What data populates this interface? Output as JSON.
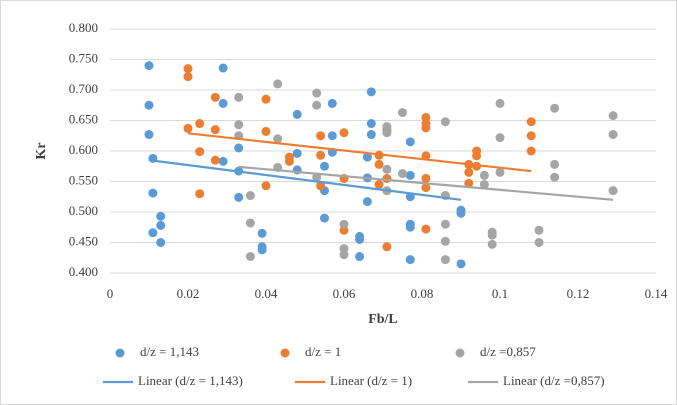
{
  "chart_data": {
    "type": "scatter",
    "xlabel": "Fb/L",
    "ylabel": "Kr",
    "xlim": [
      0,
      0.14
    ],
    "xticks": [
      0,
      0.02,
      0.04,
      0.06,
      0.08,
      0.1,
      0.12,
      0.14
    ],
    "ylim": [
      0.4,
      0.8
    ],
    "yticks": [
      {
        "value": 0.4,
        "label": "0.400"
      },
      {
        "value": 0.45,
        "label": "0.450"
      },
      {
        "value": 0.5,
        "label": "0.500"
      },
      {
        "value": 0.55,
        "label": "0.550"
      },
      {
        "value": 0.6,
        "label": "0.600"
      },
      {
        "value": 0.65,
        "label": "0.650"
      },
      {
        "value": 0.7,
        "label": "0.700"
      },
      {
        "value": 0.75,
        "label": "0.750"
      },
      {
        "value": 0.8,
        "label": "0.800"
      }
    ],
    "grid": true,
    "legend": "bottom",
    "series": [
      {
        "name": "d/z = 1,143",
        "color": "#5b9bd5",
        "mark": "scatter",
        "x": [
          0.01,
          0.01,
          0.01,
          0.011,
          0.011,
          0.011,
          0.013,
          0.013,
          0.013,
          0.029,
          0.029,
          0.029,
          0.033,
          0.033,
          0.033,
          0.039,
          0.039,
          0.039,
          0.048,
          0.048,
          0.048,
          0.055,
          0.055,
          0.055,
          0.057,
          0.057,
          0.057,
          0.064,
          0.064,
          0.064,
          0.066,
          0.066,
          0.066,
          0.067,
          0.067,
          0.067,
          0.077,
          0.077,
          0.077,
          0.077,
          0.077,
          0.077,
          0.09,
          0.09,
          0.09
        ],
        "values": [
          0.74,
          0.675,
          0.627,
          0.588,
          0.531,
          0.466,
          0.493,
          0.478,
          0.45,
          0.736,
          0.678,
          0.583,
          0.605,
          0.567,
          0.524,
          0.465,
          0.443,
          0.438,
          0.66,
          0.596,
          0.569,
          0.575,
          0.535,
          0.49,
          0.678,
          0.625,
          0.598,
          0.46,
          0.455,
          0.427,
          0.59,
          0.556,
          0.517,
          0.697,
          0.645,
          0.627,
          0.615,
          0.56,
          0.525,
          0.48,
          0.475,
          0.422,
          0.503,
          0.498,
          0.415
        ]
      },
      {
        "name": "d/z = 1",
        "color": "#ed7d31",
        "mark": "scatter",
        "x": [
          0.02,
          0.02,
          0.02,
          0.023,
          0.023,
          0.023,
          0.027,
          0.027,
          0.027,
          0.04,
          0.04,
          0.04,
          0.046,
          0.046,
          0.054,
          0.054,
          0.054,
          0.06,
          0.06,
          0.06,
          0.069,
          0.069,
          0.069,
          0.071,
          0.071,
          0.071,
          0.081,
          0.081,
          0.081,
          0.081,
          0.081,
          0.081,
          0.081,
          0.092,
          0.092,
          0.092,
          0.094,
          0.094,
          0.094,
          0.108,
          0.108,
          0.108
        ],
        "values": [
          0.735,
          0.722,
          0.637,
          0.645,
          0.599,
          0.53,
          0.688,
          0.635,
          0.585,
          0.685,
          0.632,
          0.543,
          0.59,
          0.583,
          0.625,
          0.593,
          0.543,
          0.63,
          0.555,
          0.47,
          0.593,
          0.578,
          0.545,
          0.635,
          0.555,
          0.443,
          0.655,
          0.645,
          0.638,
          0.592,
          0.555,
          0.54,
          0.472,
          0.578,
          0.565,
          0.547,
          0.6,
          0.592,
          0.575,
          0.648,
          0.625,
          0.6
        ]
      },
      {
        "name": "d/z =0,857",
        "color": "#a5a5a5",
        "mark": "scatter",
        "x": [
          0.033,
          0.033,
          0.033,
          0.036,
          0.036,
          0.036,
          0.043,
          0.043,
          0.043,
          0.053,
          0.053,
          0.053,
          0.06,
          0.06,
          0.06,
          0.071,
          0.071,
          0.071,
          0.071,
          0.075,
          0.075,
          0.086,
          0.086,
          0.086,
          0.086,
          0.086,
          0.096,
          0.096,
          0.098,
          0.098,
          0.098,
          0.1,
          0.1,
          0.1,
          0.11,
          0.11,
          0.114,
          0.114,
          0.114,
          0.129,
          0.129,
          0.129
        ],
        "values": [
          0.688,
          0.643,
          0.625,
          0.527,
          0.482,
          0.427,
          0.71,
          0.62,
          0.573,
          0.695,
          0.675,
          0.557,
          0.48,
          0.44,
          0.43,
          0.64,
          0.63,
          0.57,
          0.535,
          0.663,
          0.563,
          0.648,
          0.527,
          0.48,
          0.452,
          0.422,
          0.56,
          0.545,
          0.467,
          0.462,
          0.447,
          0.678,
          0.622,
          0.565,
          0.47,
          0.45,
          0.67,
          0.578,
          0.557,
          0.658,
          0.627,
          0.535
        ]
      },
      {
        "name": "Linear (d/z = 1,143)",
        "color": "#5b9bd5",
        "mark": "line",
        "x": [
          0.01,
          0.09
        ],
        "values": [
          0.585,
          0.52
        ]
      },
      {
        "name": "Linear (d/z = 1)",
        "color": "#ed7d31",
        "mark": "line",
        "x": [
          0.02,
          0.108
        ],
        "values": [
          0.629,
          0.567
        ]
      },
      {
        "name": "Linear (d/z =0,857)",
        "color": "#a5a5a5",
        "mark": "line",
        "x": [
          0.033,
          0.129
        ],
        "values": [
          0.574,
          0.52
        ]
      }
    ]
  }
}
